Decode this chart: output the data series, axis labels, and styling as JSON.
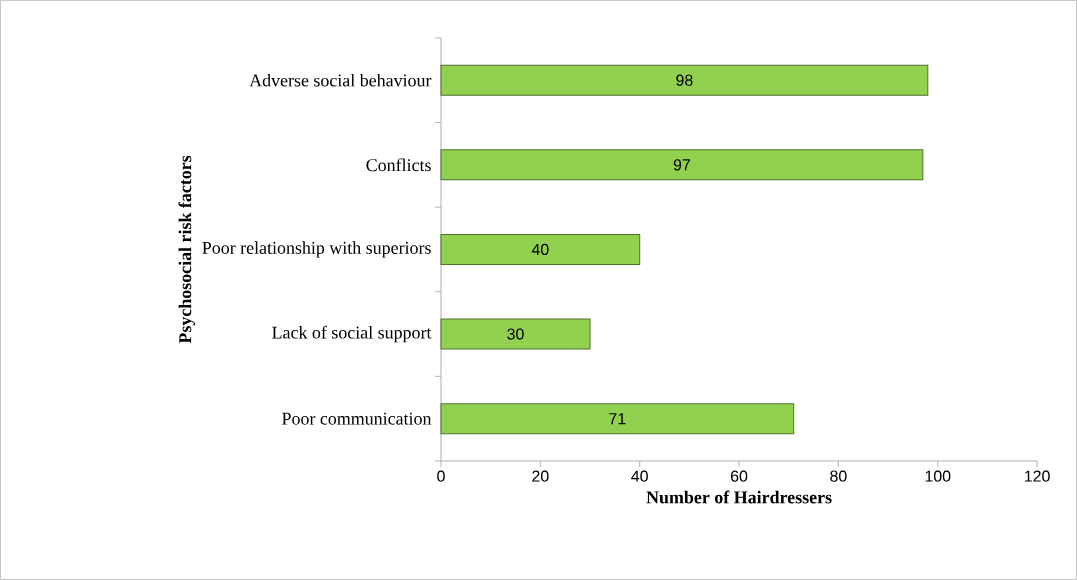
{
  "chart_data": {
    "type": "bar",
    "orientation": "horizontal",
    "xlabel": "Number of Hairdressers",
    "ylabel": "Psychosocial risk factors",
    "categories": [
      "Adverse social behaviour",
      "Conflicts",
      "Poor relationship with superiors",
      "Lack of social support",
      "Poor communication"
    ],
    "values": [
      98,
      97,
      40,
      30,
      71
    ],
    "color": "#92d050",
    "data_labels": true,
    "xlim": [
      0,
      120
    ],
    "xticks": [
      0,
      20,
      40,
      60,
      80,
      100,
      120
    ],
    "grid": false
  }
}
